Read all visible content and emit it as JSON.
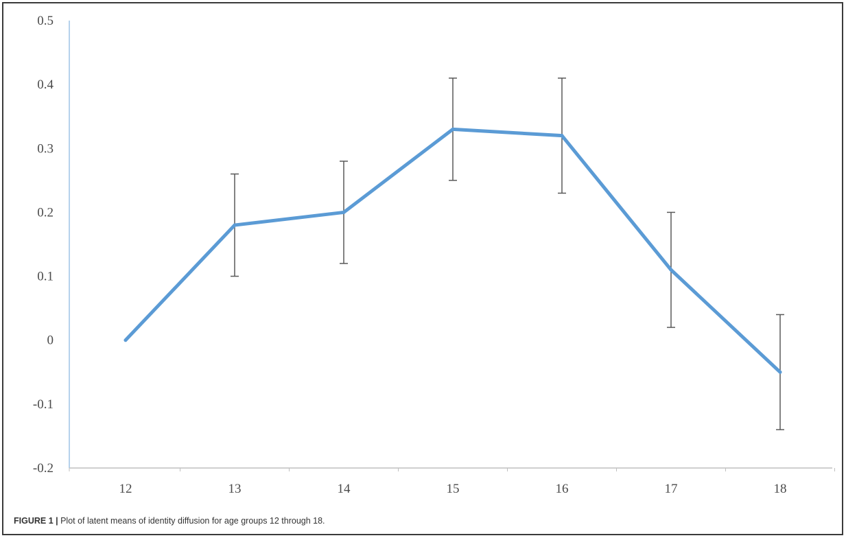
{
  "chart_data": {
    "type": "line",
    "title": "",
    "xlabel": "",
    "ylabel": "",
    "categories": [
      "12",
      "13",
      "14",
      "15",
      "16",
      "17",
      "18"
    ],
    "series": [
      {
        "values": [
          0,
          0.18,
          0.2,
          0.33,
          0.32,
          0.11,
          -0.05
        ],
        "error_low": [
          null,
          0.1,
          0.12,
          0.25,
          0.23,
          0.02,
          -0.14
        ],
        "error_high": [
          null,
          0.26,
          0.28,
          0.41,
          0.41,
          0.2,
          0.04
        ]
      }
    ],
    "ylim": [
      -0.2,
      0.5
    ],
    "yticks": [
      "-0.2",
      "-0.1",
      "0",
      "0.1",
      "0.2",
      "0.3",
      "0.4",
      "0.5"
    ],
    "yticks_values": [
      -0.2,
      -0.1,
      0,
      0.1,
      0.2,
      0.3,
      0.4,
      0.5
    ],
    "grid": false,
    "colors": {
      "line": "#5b9bd5",
      "error_bar": "#595959",
      "axis": "#9dc3e6"
    }
  },
  "caption": {
    "label": "FIGURE 1 |",
    "text": " Plot of latent means of identity diffusion for age groups 12 through 18."
  }
}
